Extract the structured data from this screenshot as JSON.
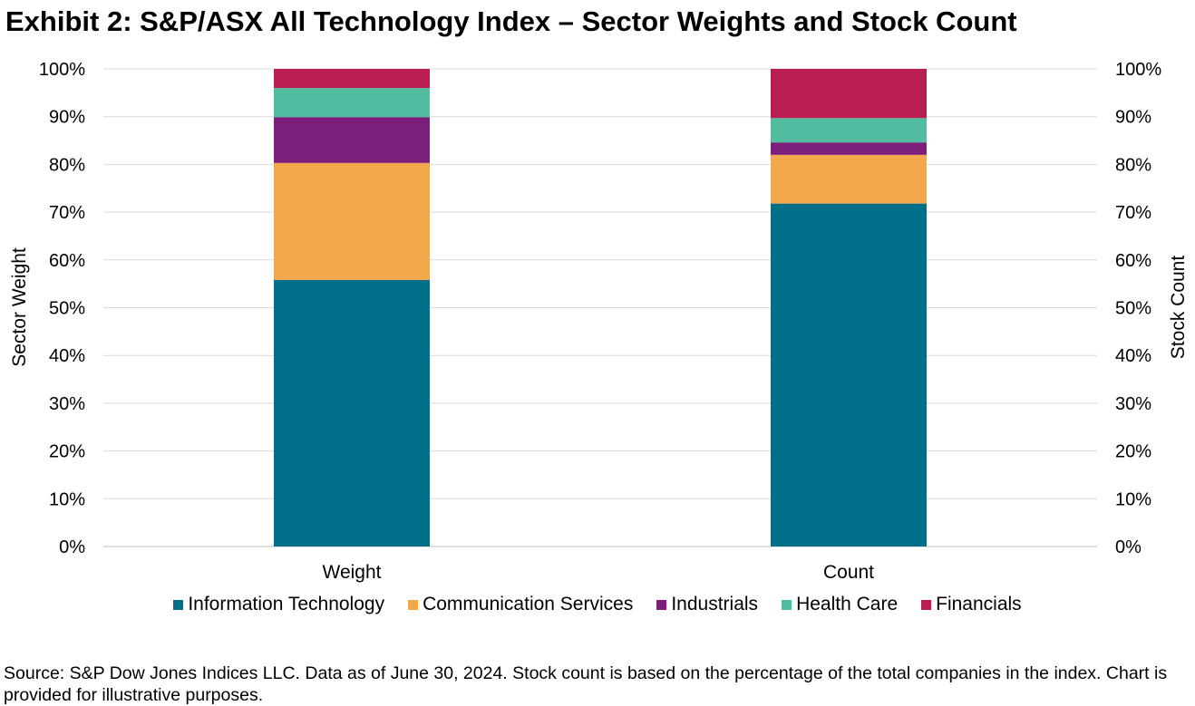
{
  "title": "Exhibit 2: S&P/ASX All Technology Index – Sector Weights and Stock Count",
  "source": "Source: S&P Dow Jones Indices LLC. Data as of June 30, 2024. Stock count is based on the percentage of the total companies in the index.  Chart is provided for illustrative purposes.",
  "chart_data": {
    "type": "bar",
    "stacked": true,
    "categories": [
      "Weight",
      "Count"
    ],
    "ylabel": "Sector Weight",
    "y2label": "Stock Count",
    "ylim": [
      0,
      100
    ],
    "y_ticks": [
      "0%",
      "10%",
      "20%",
      "30%",
      "40%",
      "50%",
      "60%",
      "70%",
      "80%",
      "90%",
      "100%"
    ],
    "grid": true,
    "legend_position": "bottom",
    "series": [
      {
        "name": "Information Technology",
        "color": "#006F8A",
        "values": [
          55.8,
          71.8
        ]
      },
      {
        "name": "Communication Services",
        "color": "#F2A74B",
        "values": [
          24.5,
          10.2
        ]
      },
      {
        "name": "Industrials",
        "color": "#7B1F7A",
        "values": [
          9.6,
          2.6
        ]
      },
      {
        "name": "Health Care",
        "color": "#52BCA0",
        "values": [
          6.1,
          5.1
        ]
      },
      {
        "name": "Financials",
        "color": "#B81F50",
        "values": [
          4.0,
          10.3
        ]
      }
    ]
  }
}
